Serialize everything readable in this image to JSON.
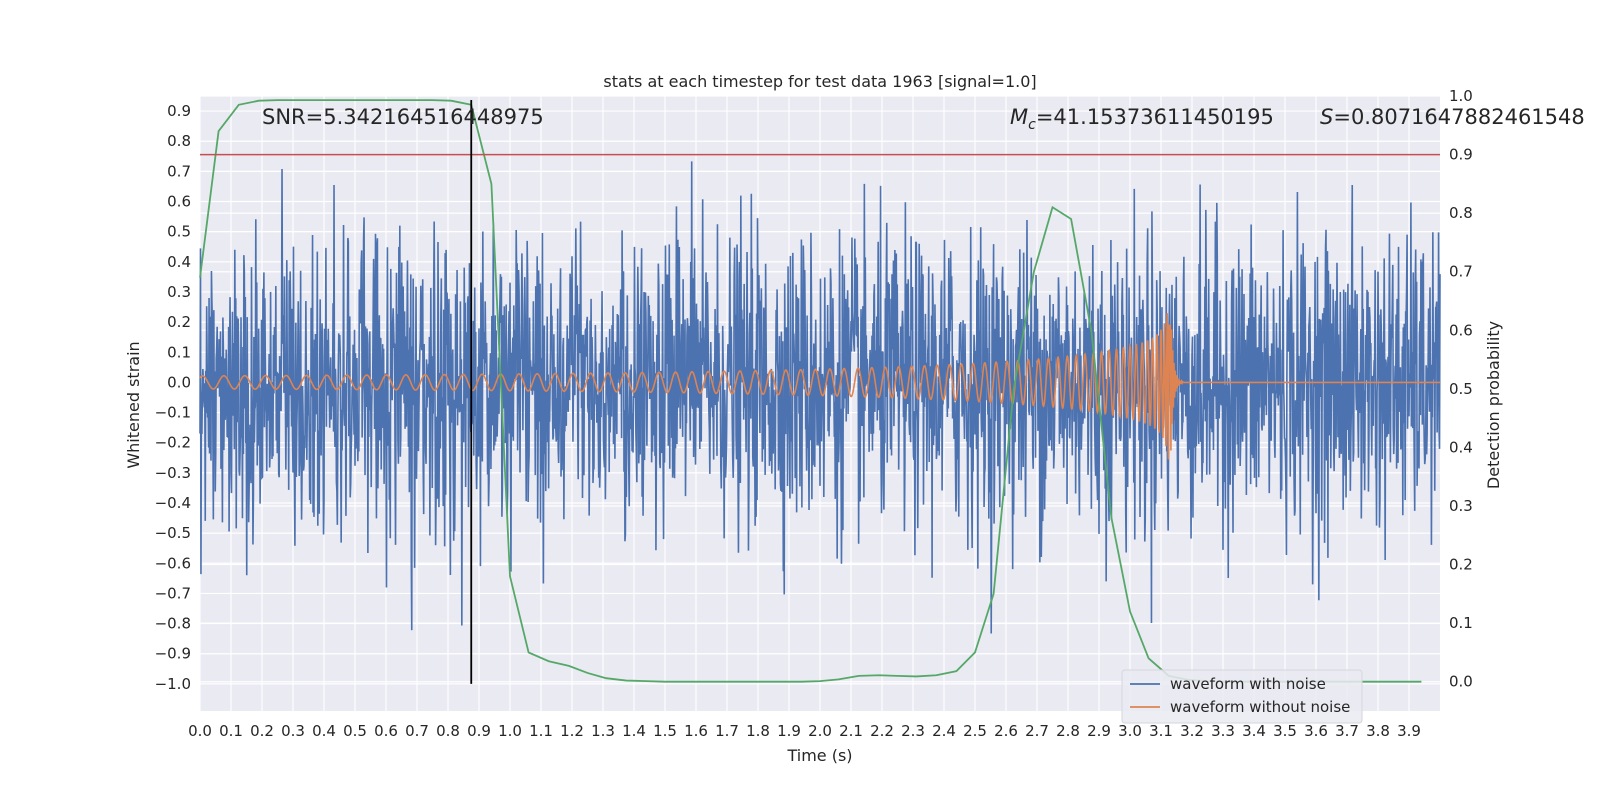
{
  "chart_data": {
    "type": "line",
    "title": "stats at each timestep for test data 1963 [signal=1.0]",
    "xlabel": "Time (s)",
    "ylabel_left": "Whitened strain",
    "ylabel_right": "Detection probability",
    "xlim": [
      0.0,
      4.0
    ],
    "ylim_left": [
      -1.09,
      0.95
    ],
    "ylim_right": [
      -0.05,
      1.0
    ],
    "x_ticks": [
      "0.0",
      "0.1",
      "0.2",
      "0.3",
      "0.4",
      "0.5",
      "0.6",
      "0.7",
      "0.8",
      "0.9",
      "1.0",
      "1.1",
      "1.2",
      "1.3",
      "1.4",
      "1.5",
      "1.6",
      "1.7",
      "1.8",
      "1.9",
      "2.0",
      "2.1",
      "2.2",
      "2.3",
      "2.4",
      "2.5",
      "2.6",
      "2.7",
      "2.8",
      "2.9",
      "3.0",
      "3.1",
      "3.2",
      "3.3",
      "3.4",
      "3.5",
      "3.6",
      "3.7",
      "3.8",
      "3.9"
    ],
    "y_ticks_left": [
      "−1.0",
      "−0.9",
      "−0.8",
      "−0.7",
      "−0.6",
      "−0.5",
      "−0.4",
      "−0.3",
      "−0.2",
      "−0.1",
      "0.0",
      "0.1",
      "0.2",
      "0.3",
      "0.4",
      "0.5",
      "0.6",
      "0.7",
      "0.8",
      "0.9"
    ],
    "y_ticks_right": [
      "0.0",
      "0.1",
      "0.2",
      "0.3",
      "0.4",
      "0.5",
      "0.6",
      "0.7",
      "0.8",
      "0.9",
      "1.0"
    ],
    "grid": true,
    "legend_position": "lower-right",
    "annotations": {
      "snr": "SNR=5.342164516448975",
      "mc_symbol": "M",
      "mc_sub": "c",
      "mc_value": "=41.15373611450195",
      "s_symbol": "S",
      "s_value": "=0.8071647882461548"
    },
    "threshold_right": 0.9,
    "vertical_marker_x": 0.875,
    "colors": {
      "noisy": "#4c72b0",
      "clean": "#dd8452",
      "probability": "#55a868",
      "threshold": "#c44e52",
      "marker": "#000000",
      "background": "#eaeaf2",
      "grid": "#ffffff"
    },
    "series": [
      {
        "name": "waveform with noise",
        "axis": "left",
        "style": "noise",
        "x_range": [
          0.0,
          4.0
        ],
        "std": 0.24,
        "max": 0.86,
        "min": -0.95
      },
      {
        "name": "waveform without noise",
        "axis": "left",
        "style": "chirp",
        "x_range": [
          0.0,
          4.0
        ],
        "merger_time": 3.13,
        "peak_amplitude": 0.29,
        "ringdown_end": 3.17
      },
      {
        "name": "",
        "axis": "right",
        "style": "line",
        "x": [
          0.0,
          0.06,
          0.125,
          0.19,
          0.25,
          0.31,
          0.375,
          0.44,
          0.5,
          0.56,
          0.625,
          0.69,
          0.75,
          0.81,
          0.875,
          0.94,
          1.0,
          1.06,
          1.125,
          1.19,
          1.25,
          1.31,
          1.375,
          1.44,
          1.5,
          1.56,
          1.625,
          1.69,
          1.75,
          1.81,
          1.875,
          1.94,
          2.0,
          2.06,
          2.125,
          2.19,
          2.25,
          2.31,
          2.375,
          2.44,
          2.5,
          2.56,
          2.625,
          2.69,
          2.75,
          2.81,
          2.875,
          2.94,
          3.0,
          3.06,
          3.125,
          3.19,
          3.25,
          3.31,
          3.375,
          3.44,
          3.5,
          3.56,
          3.625,
          3.69,
          3.75,
          3.81,
          3.875,
          3.94
        ],
        "y": [
          0.69,
          0.94,
          0.985,
          0.992,
          0.993,
          0.993,
          0.993,
          0.993,
          0.993,
          0.993,
          0.993,
          0.993,
          0.993,
          0.992,
          0.985,
          0.85,
          0.18,
          0.05,
          0.035,
          0.027,
          0.015,
          0.006,
          0.002,
          0.001,
          0.0,
          0.0,
          0.0,
          0.0,
          0.0,
          0.0,
          0.0,
          0.0,
          0.001,
          0.004,
          0.01,
          0.011,
          0.01,
          0.009,
          0.011,
          0.018,
          0.05,
          0.15,
          0.5,
          0.7,
          0.81,
          0.79,
          0.6,
          0.28,
          0.12,
          0.04,
          0.01,
          0.003,
          0.001,
          0.0,
          0.0,
          0.0,
          0.0,
          0.0,
          0.0,
          0.0,
          0.0,
          0.0,
          0.0,
          0.0
        ]
      }
    ],
    "legend": [
      "waveform with noise",
      "waveform without noise"
    ]
  }
}
